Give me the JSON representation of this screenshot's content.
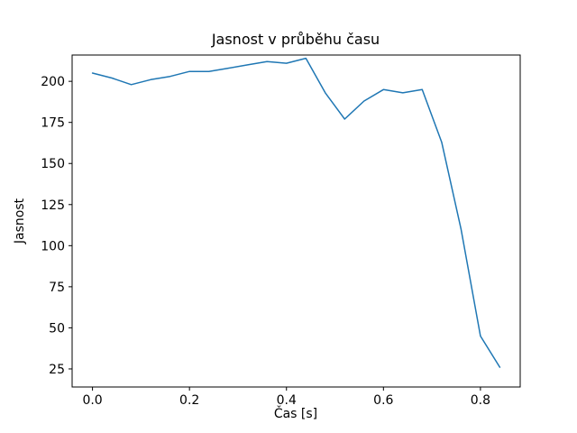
{
  "chart_data": {
    "type": "line",
    "title": "Jasnost v průběhu času",
    "xlabel": "Čas [s]",
    "ylabel": "Jasnost",
    "x": [
      0.0,
      0.04,
      0.08,
      0.12,
      0.16,
      0.2,
      0.24,
      0.28,
      0.32,
      0.36,
      0.4,
      0.44,
      0.48,
      0.52,
      0.56,
      0.6,
      0.64,
      0.68,
      0.72,
      0.76,
      0.8,
      0.84
    ],
    "y": [
      205,
      202,
      198,
      201,
      203,
      206,
      206,
      208,
      210,
      212,
      211,
      214,
      193,
      177,
      188,
      195,
      193,
      195,
      163,
      110,
      45,
      26
    ],
    "xlim": [
      -0.042,
      0.882
    ],
    "ylim": [
      14,
      216
    ],
    "xticks": [
      0.0,
      0.2,
      0.4,
      0.6,
      0.8
    ],
    "xtick_labels": [
      "0.0",
      "0.2",
      "0.4",
      "0.6",
      "0.8"
    ],
    "yticks": [
      25,
      50,
      75,
      100,
      125,
      150,
      175,
      200
    ],
    "ytick_labels": [
      "25",
      "50",
      "75",
      "100",
      "125",
      "150",
      "175",
      "200"
    ],
    "line_color": "#1f77b4",
    "frame_color": "#000000",
    "grid": false,
    "legend_position": "none"
  }
}
